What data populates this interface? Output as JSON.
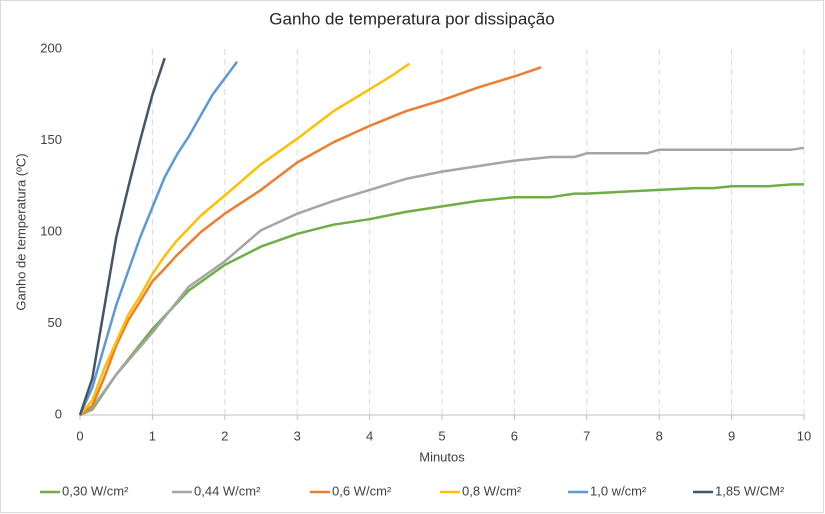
{
  "chart_data": {
    "type": "line",
    "title": "Ganho de temperatura por dissipação",
    "x_label": "Minutos",
    "y_label": "Ganho de temperatura (ºC)",
    "xlim": [
      0,
      10
    ],
    "xticks": [
      0,
      1,
      2,
      3,
      4,
      5,
      6,
      7,
      8,
      9,
      10
    ],
    "ylim": [
      0,
      200
    ],
    "yticks": [
      0,
      50,
      100,
      150,
      200
    ],
    "grid": "x",
    "legend": "bottom",
    "series": [
      {
        "name": "0,30 W/cm²",
        "color": "#70ad47",
        "x": [
          0,
          0.17,
          0.5,
          1.0,
          1.5,
          2.0,
          2.5,
          3.0,
          3.5,
          4.0,
          4.5,
          5.0,
          5.5,
          6.0,
          6.5,
          6.83,
          7.0,
          7.5,
          8.0,
          8.5,
          8.75,
          9.0,
          9.5,
          9.83,
          10
        ],
        "values": [
          0,
          3,
          22,
          47,
          68,
          82,
          92,
          99,
          104,
          107,
          111,
          114,
          117,
          119,
          119,
          121,
          121,
          122,
          123,
          124,
          124,
          125,
          125,
          126,
          126
        ]
      },
      {
        "name": "0,44 W/cm²",
        "color": "#a5a5a5",
        "x": [
          0,
          0.17,
          0.5,
          1.0,
          1.5,
          2.0,
          2.5,
          3.0,
          3.5,
          4.0,
          4.5,
          5.0,
          5.5,
          6.0,
          6.5,
          6.83,
          7.0,
          7.5,
          7.83,
          8.0,
          9.0,
          9.83,
          10
        ],
        "values": [
          0,
          4,
          22,
          45,
          70,
          84,
          101,
          110,
          117,
          123,
          129,
          133,
          136,
          139,
          141,
          141,
          143,
          143,
          143,
          145,
          145,
          145,
          146
        ]
      },
      {
        "name": "0,6 W/cm²",
        "color": "#ed7d31",
        "x": [
          0,
          0.17,
          0.33,
          0.5,
          0.67,
          0.83,
          1.0,
          1.17,
          1.33,
          1.67,
          2.0,
          2.5,
          3.0,
          3.5,
          4.0,
          4.5,
          5.0,
          5.5,
          6.0,
          6.37
        ],
        "values": [
          0,
          5,
          20,
          38,
          52,
          62,
          73,
          80,
          87,
          100,
          110,
          123,
          138,
          149,
          158,
          166,
          172,
          179,
          185,
          190
        ]
      },
      {
        "name": "0,8 W/cm²",
        "color": "#ffc000",
        "x": [
          0,
          0.17,
          0.33,
          0.5,
          0.67,
          0.83,
          1.0,
          1.17,
          1.33,
          1.67,
          2.0,
          2.5,
          3.0,
          3.5,
          4.0,
          4.33,
          4.55
        ],
        "values": [
          0,
          8,
          25,
          40,
          55,
          65,
          77,
          87,
          95,
          109,
          120,
          137,
          151,
          166,
          178,
          186,
          192
        ]
      },
      {
        "name": "1,0 w/cm²",
        "color": "#5b9bd5",
        "x": [
          0,
          0.17,
          0.5,
          0.83,
          1.17,
          1.35,
          1.5,
          1.83,
          2.17
        ],
        "values": [
          0,
          15,
          60,
          97,
          130,
          143,
          152,
          175,
          193
        ]
      },
      {
        "name": "1,85 W/CM²",
        "color": "#44546a",
        "x": [
          0,
          0.17,
          0.5,
          0.67,
          0.83,
          1.0,
          1.17
        ],
        "values": [
          0,
          20,
          97,
          125,
          150,
          175,
          195
        ]
      }
    ]
  }
}
